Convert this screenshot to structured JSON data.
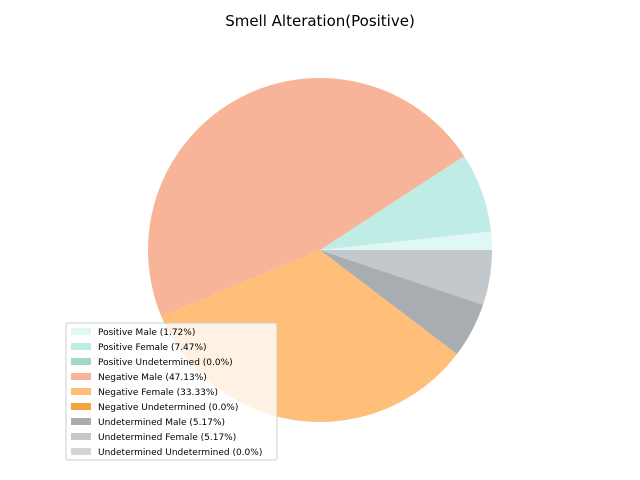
{
  "chart_data": {
    "type": "pie",
    "title": "Smell Alteration(Positive)",
    "legend_position": "lower-left",
    "slices": [
      {
        "label": "Positive Male (1.72%)",
        "value": 1.72,
        "color": "#e0f8f5"
      },
      {
        "label": "Positive Female (7.47%)",
        "value": 7.47,
        "color": "#bfece5"
      },
      {
        "label": "Positive Undetermined (0.0%)",
        "value": 0.0,
        "color": "#a2d9c6"
      },
      {
        "label": "Negative Male (47.13%)",
        "value": 47.13,
        "color": "#f8b498"
      },
      {
        "label": "Negative Female (33.33%)",
        "value": 33.33,
        "color": "#ffbf78"
      },
      {
        "label": "Negative Undetermined (0.0%)",
        "value": 0.0,
        "color": "#f5a440"
      },
      {
        "label": "Undetermined Male (5.17%)",
        "value": 5.17,
        "color": "#a9adb2"
      },
      {
        "label": "Undetermined Female (5.17%)",
        "value": 5.17,
        "color": "#c3c8cc"
      },
      {
        "label": "Undetermined Undetermined (0.0%)",
        "value": 0.0,
        "color": "#d5d5d5"
      }
    ]
  }
}
